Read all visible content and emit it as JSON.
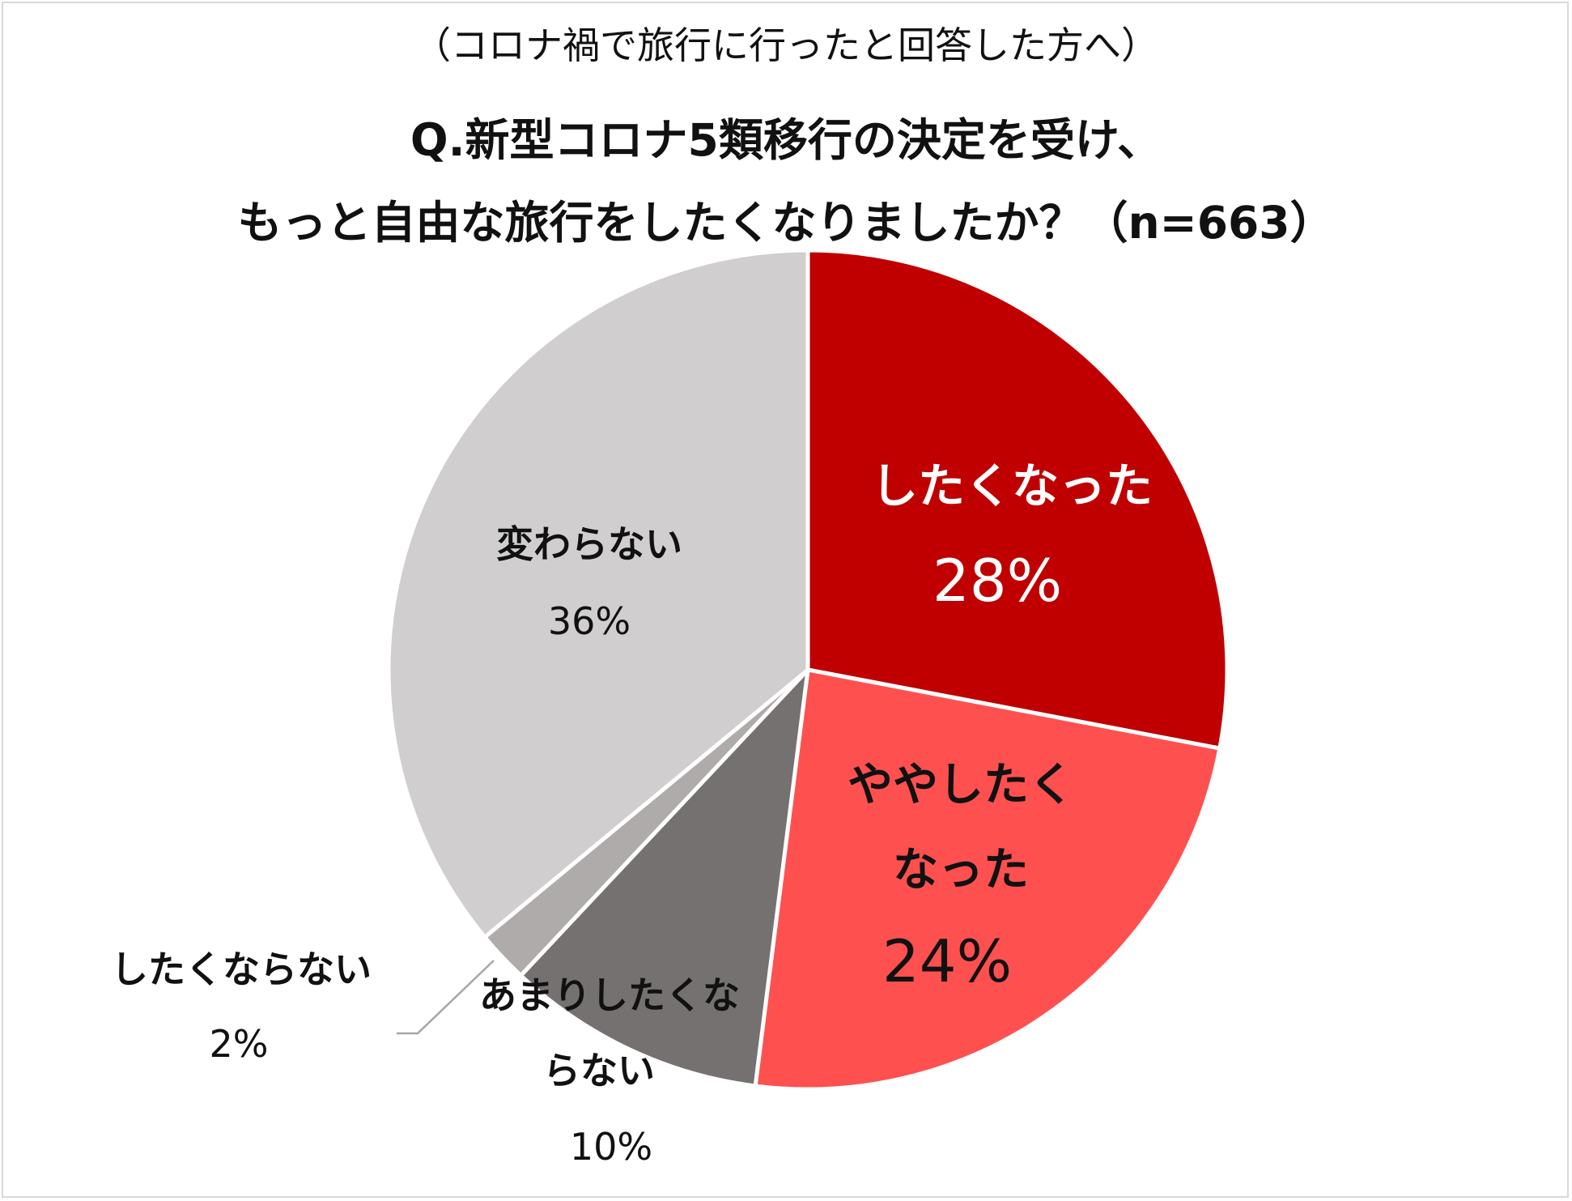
{
  "subtitle": "（コロナ禍で旅行に行ったと回答した方へ）",
  "title_line1": "Q.新型コロナ5類移行の決定を受け、",
  "title_line2": "もっと自由な旅行をしたくなりましたか？（n=663）",
  "chart_data": {
    "type": "pie",
    "title": "Q.新型コロナ5類移行の決定を受け、もっと自由な旅行をしたくなりましたか？（n=663）",
    "subtitle": "（コロナ禍で旅行に行ったと回答した方へ）",
    "n": 663,
    "start": "12 o'clock",
    "direction": "clockwise",
    "slices": [
      {
        "label": "したくなった",
        "value": 28,
        "value_label": "28%",
        "color": "#c00000",
        "label_color": "#ffffff"
      },
      {
        "label": "ややしたくなった",
        "value": 24,
        "value_label": "24%",
        "color": "#ff5050",
        "label_color": "#111111"
      },
      {
        "label": "あまりしたくならない",
        "value": 10,
        "value_label": "10%",
        "color": "#767171",
        "label_color": "#111111"
      },
      {
        "label": "したくならない",
        "value": 2,
        "value_label": "2%",
        "color": "#afabab",
        "label_color": "#111111"
      },
      {
        "label": "変わらない",
        "value": 36,
        "value_label": "36%",
        "color": "#d0cece",
        "label_color": "#111111"
      }
    ]
  }
}
